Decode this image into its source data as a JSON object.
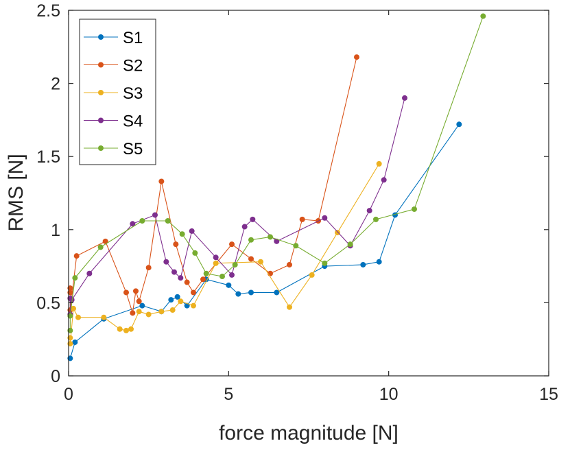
{
  "chart_data": {
    "type": "line",
    "title": "",
    "xlabel": "force magnitude [N]",
    "ylabel": "RMS [N]",
    "xlim": [
      0,
      15
    ],
    "ylim": [
      0,
      2.5
    ],
    "xticks": [
      0,
      5,
      10,
      15
    ],
    "xtick_labels": [
      "0",
      "5",
      "10",
      "15"
    ],
    "yticks": [
      0,
      0.5,
      1,
      1.5,
      2,
      2.5
    ],
    "ytick_labels": [
      "0",
      "0.5",
      "1",
      "1.5",
      "2",
      "2.5"
    ],
    "grid": false,
    "legend_position": "top-left",
    "series": [
      {
        "name": "S1",
        "color": "#0072BD",
        "points": [
          [
            0.05,
            0.12
          ],
          [
            0.2,
            0.23
          ],
          [
            1.1,
            0.39
          ],
          [
            2.3,
            0.48
          ],
          [
            2.9,
            0.44
          ],
          [
            3.2,
            0.52
          ],
          [
            3.4,
            0.54
          ],
          [
            3.7,
            0.48
          ],
          [
            4.3,
            0.66
          ],
          [
            5.0,
            0.62
          ],
          [
            5.3,
            0.56
          ],
          [
            5.7,
            0.57
          ],
          [
            6.5,
            0.57
          ],
          [
            8.0,
            0.75
          ],
          [
            9.2,
            0.76
          ],
          [
            9.7,
            0.78
          ],
          [
            10.2,
            1.1
          ],
          [
            12.2,
            1.72
          ]
        ]
      },
      {
        "name": "S2",
        "color": "#D95319",
        "points": [
          [
            0.05,
            0.6
          ],
          [
            0.05,
            0.57
          ],
          [
            0.05,
            0.45
          ],
          [
            0.25,
            0.82
          ],
          [
            1.15,
            0.92
          ],
          [
            1.8,
            0.57
          ],
          [
            2.0,
            0.43
          ],
          [
            2.1,
            0.58
          ],
          [
            2.2,
            0.51
          ],
          [
            2.5,
            0.74
          ],
          [
            2.9,
            1.33
          ],
          [
            3.35,
            0.9
          ],
          [
            3.7,
            0.64
          ],
          [
            3.9,
            0.57
          ],
          [
            4.2,
            0.66
          ],
          [
            5.1,
            0.9
          ],
          [
            5.7,
            0.8
          ],
          [
            6.3,
            0.7
          ],
          [
            6.9,
            0.76
          ],
          [
            7.3,
            1.07
          ],
          [
            7.8,
            1.06
          ],
          [
            9.0,
            2.18
          ]
        ]
      },
      {
        "name": "S3",
        "color": "#EDB120",
        "points": [
          [
            0.05,
            0.26
          ],
          [
            0.05,
            0.22
          ],
          [
            0.15,
            0.46
          ],
          [
            0.3,
            0.4
          ],
          [
            1.1,
            0.4
          ],
          [
            1.6,
            0.32
          ],
          [
            1.8,
            0.31
          ],
          [
            1.95,
            0.32
          ],
          [
            2.2,
            0.44
          ],
          [
            2.5,
            0.42
          ],
          [
            2.9,
            0.44
          ],
          [
            3.25,
            0.45
          ],
          [
            3.5,
            0.51
          ],
          [
            3.9,
            0.48
          ],
          [
            4.6,
            0.77
          ],
          [
            6.0,
            0.78
          ],
          [
            6.9,
            0.47
          ],
          [
            7.6,
            0.69
          ],
          [
            8.4,
            0.98
          ],
          [
            9.7,
            1.45
          ]
        ]
      },
      {
        "name": "S4",
        "color": "#7E2F8E",
        "points": [
          [
            0.05,
            0.42
          ],
          [
            0.05,
            0.53
          ],
          [
            0.1,
            0.52
          ],
          [
            0.65,
            0.7
          ],
          [
            2.0,
            1.04
          ],
          [
            2.7,
            1.1
          ],
          [
            3.05,
            0.78
          ],
          [
            3.3,
            0.71
          ],
          [
            3.5,
            0.67
          ],
          [
            3.85,
            0.99
          ],
          [
            4.6,
            0.81
          ],
          [
            5.1,
            0.69
          ],
          [
            5.5,
            1.02
          ],
          [
            5.75,
            1.07
          ],
          [
            6.5,
            0.92
          ],
          [
            8.0,
            1.08
          ],
          [
            8.8,
            0.89
          ],
          [
            9.4,
            1.13
          ],
          [
            9.85,
            1.34
          ],
          [
            10.5,
            1.9
          ]
        ]
      },
      {
        "name": "S5",
        "color": "#77AC30",
        "points": [
          [
            0.05,
            0.31
          ],
          [
            0.05,
            0.41
          ],
          [
            0.2,
            0.67
          ],
          [
            1.0,
            0.88
          ],
          [
            2.3,
            1.06
          ],
          [
            3.1,
            1.06
          ],
          [
            3.55,
            0.97
          ],
          [
            3.95,
            0.84
          ],
          [
            4.3,
            0.7
          ],
          [
            4.8,
            0.68
          ],
          [
            5.2,
            0.76
          ],
          [
            5.7,
            0.93
          ],
          [
            6.3,
            0.95
          ],
          [
            7.1,
            0.89
          ],
          [
            8.0,
            0.77
          ],
          [
            8.8,
            0.9
          ],
          [
            9.6,
            1.07
          ],
          [
            10.8,
            1.14
          ],
          [
            12.95,
            2.46
          ]
        ]
      }
    ]
  }
}
